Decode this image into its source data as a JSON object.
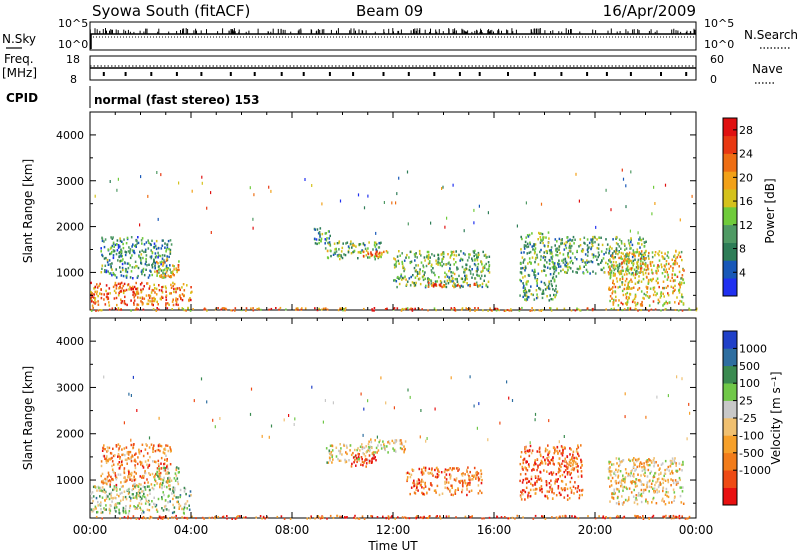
{
  "header": {
    "title": "Syowa South (fitACF)",
    "beam": "Beam 09",
    "date": "16/Apr/2009"
  },
  "aux_panels": {
    "nsky_label": "N.Sky",
    "nsky_ticks": [
      "10^5",
      "10^0"
    ],
    "nsearch_label": "N.Search",
    "nsearch_ticks": [
      "10^5",
      "10^0"
    ],
    "freq_label_1": "Freq.",
    "freq_label_2": "[MHz]",
    "freq_ticks": [
      "18",
      "8"
    ],
    "nave_label": "Nave",
    "nave_ticks": [
      "60",
      "0"
    ],
    "cpid_label": "CPID",
    "cpid_value": "normal (fast stereo) 153"
  },
  "colors": {
    "power": [
      "#2030f0",
      "#1858b8",
      "#2e7d57",
      "#4f9a64",
      "#6fcb3b",
      "#d4c21c",
      "#f2a118",
      "#ee6e14",
      "#e83812",
      "#e01010"
    ],
    "velocity": [
      "#e81010",
      "#ee4a14",
      "#f27c1a",
      "#f6a02a",
      "#f0c070",
      "#c8c8c8",
      "#70c848",
      "#3a8a50",
      "#2e6ea0",
      "#2040c8"
    ],
    "ground": "#bbbbbb"
  },
  "chart_data": [
    {
      "type": "heatmap",
      "name": "power",
      "xlabel": "Time UT",
      "ylabel": "Slant Range [km]",
      "ylim": [
        180,
        4500
      ],
      "x_ticks": [
        "00:00",
        "04:00",
        "08:00",
        "12:00",
        "16:00",
        "20:00",
        "00:00"
      ],
      "y_ticks": [
        1000,
        2000,
        3000,
        4000
      ],
      "colorbar": {
        "label": "Power [dB]",
        "ticks": [
          4,
          8,
          12,
          16,
          20,
          24,
          28
        ],
        "range": [
          0,
          30
        ]
      },
      "echo_regions": [
        {
          "t": [
            0.0,
            4.0
          ],
          "r": [
            300,
            800
          ],
          "level": 0.75
        },
        {
          "t": [
            0.4,
            3.2
          ],
          "r": [
            900,
            1800
          ],
          "level": 0.3
        },
        {
          "t": [
            1.0,
            2.0
          ],
          "r": [
            550,
            700
          ],
          "level": 0.8
        },
        {
          "t": [
            2.5,
            3.5
          ],
          "r": [
            900,
            1300
          ],
          "level": 0.65
        },
        {
          "t": [
            8.8,
            9.5
          ],
          "r": [
            1600,
            2000
          ],
          "level": 0.3
        },
        {
          "t": [
            9.3,
            11.5
          ],
          "r": [
            1300,
            1700
          ],
          "level": 0.4
        },
        {
          "t": [
            10.5,
            12.0
          ],
          "r": [
            1350,
            1500
          ],
          "level": 0.7
        },
        {
          "t": [
            12.0,
            15.8
          ],
          "r": [
            700,
            1500
          ],
          "level": 0.4
        },
        {
          "t": [
            13.0,
            15.5
          ],
          "r": [
            700,
            800
          ],
          "level": 0.8
        },
        {
          "t": [
            17.0,
            18.5
          ],
          "r": [
            400,
            1900
          ],
          "level": 0.35
        },
        {
          "t": [
            18.5,
            22.0
          ],
          "r": [
            1000,
            1800
          ],
          "level": 0.35
        },
        {
          "t": [
            20.5,
            23.5
          ],
          "r": [
            300,
            1500
          ],
          "level": 0.6
        }
      ]
    },
    {
      "type": "heatmap",
      "name": "velocity",
      "xlabel": "Time UT",
      "ylabel": "Slant Range [km]",
      "ylim": [
        180,
        4500
      ],
      "x_ticks": [
        "00:00",
        "04:00",
        "08:00",
        "12:00",
        "16:00",
        "20:00",
        "00:00"
      ],
      "y_ticks": [
        1000,
        2000,
        3000,
        4000
      ],
      "colorbar": {
        "label": "Velocity [m s⁻¹]",
        "ticks": [
          "1000",
          "500",
          "100",
          "25",
          "-25",
          "-100",
          "-500",
          "-1000"
        ],
        "range": [
          -1000,
          1000
        ]
      },
      "echo_regions": [
        {
          "t": [
            0.0,
            4.0
          ],
          "r": [
            300,
            900
          ],
          "level": 0.6
        },
        {
          "t": [
            0.4,
            3.2
          ],
          "r": [
            900,
            1800
          ],
          "level": 0.3
        },
        {
          "t": [
            2.5,
            3.5
          ],
          "r": [
            900,
            1300
          ],
          "level": 0.6
        },
        {
          "t": [
            9.3,
            11.2
          ],
          "r": [
            1400,
            1800
          ],
          "level": 0.5
        },
        {
          "t": [
            10.3,
            11.3
          ],
          "r": [
            1300,
            1600
          ],
          "level": 0.05
        },
        {
          "t": [
            11.0,
            12.5
          ],
          "r": [
            1600,
            1900
          ],
          "level": 0.45
        },
        {
          "t": [
            12.5,
            15.5
          ],
          "r": [
            700,
            1300
          ],
          "level": 0.25
        },
        {
          "t": [
            17.0,
            19.5
          ],
          "r": [
            600,
            1800
          ],
          "level": 0.2
        },
        {
          "t": [
            20.5,
            23.5
          ],
          "r": [
            500,
            1500
          ],
          "level": 0.45
        }
      ]
    }
  ]
}
